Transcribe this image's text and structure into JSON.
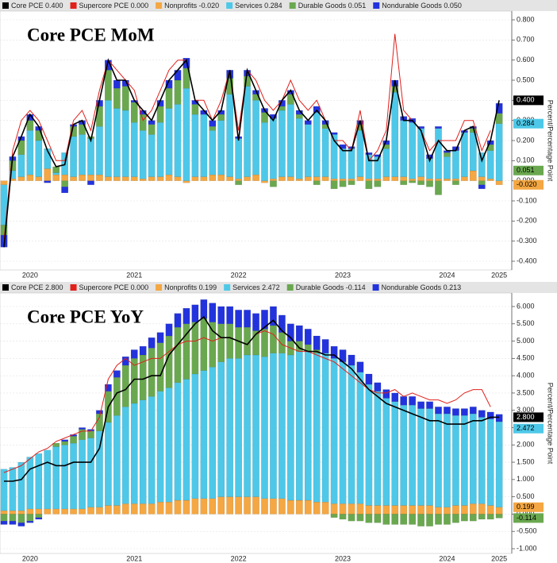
{
  "chart_data": [
    {
      "type": "bar",
      "title": "Core PCE MoM",
      "y_label": "Percent/Percentage Point",
      "legend_labels": [
        "Core PCE 0.400",
        "Supercore PCE 0.000",
        "Nonprofits -0.020",
        "Services 0.284",
        "Durable Goods 0.051",
        "Nondurable Goods 0.050"
      ],
      "categories": [
        null,
        null,
        null,
        "2020",
        null,
        null,
        null,
        null,
        null,
        null,
        null,
        null,
        null,
        null,
        null,
        "2021",
        null,
        null,
        null,
        null,
        null,
        null,
        null,
        null,
        null,
        null,
        null,
        "2022",
        null,
        null,
        null,
        null,
        null,
        null,
        null,
        null,
        null,
        null,
        null,
        "2023",
        null,
        null,
        null,
        null,
        null,
        null,
        null,
        null,
        null,
        null,
        null,
        "2024",
        null,
        null,
        null,
        null,
        null,
        "2025"
      ],
      "ylim": [
        -0.4,
        0.8
      ],
      "yticks": [
        {
          "value": -0.4,
          "label": "-0.400"
        },
        {
          "value": -0.3,
          "label": "-0.300"
        },
        {
          "value": -0.2,
          "label": "-0.200"
        },
        {
          "value": -0.1,
          "label": "-0.100"
        },
        {
          "value": 0,
          "label": "0.000"
        },
        {
          "value": 0.1,
          "label": "0.100"
        },
        {
          "value": 0.2,
          "label": "0.200"
        },
        {
          "value": 0.3,
          "label": "0.300"
        },
        {
          "value": 0.4,
          "label": "0.400"
        },
        {
          "value": 0.5,
          "label": "0.500"
        },
        {
          "value": 0.6,
          "label": "0.600"
        },
        {
          "value": 0.7,
          "label": "0.700"
        },
        {
          "value": 0.8,
          "label": "0.800"
        }
      ],
      "grid": true,
      "end_labels": [
        {
          "value": 0.4,
          "label": "0.400",
          "color": "#000000"
        },
        {
          "value": 0.284,
          "label": "0.284",
          "color": "#4ec8e8"
        },
        {
          "value": 0.051,
          "label": "0.051",
          "color": "#6aa84f"
        },
        {
          "value": -0.02,
          "label": "-0.020",
          "color": "#f4a742"
        }
      ],
      "series": [
        {
          "name": "Core PCE",
          "mark": "line",
          "color": "#000000",
          "values": [
            -0.33,
            0.12,
            0.22,
            0.33,
            0.27,
            0.15,
            0.07,
            0.08,
            0.28,
            0.3,
            0.2,
            0.4,
            0.6,
            0.5,
            0.5,
            0.4,
            0.35,
            0.3,
            0.4,
            0.5,
            0.55,
            0.6,
            0.4,
            0.35,
            0.3,
            0.35,
            0.55,
            0.2,
            0.55,
            0.45,
            0.35,
            0.3,
            0.4,
            0.45,
            0.35,
            0.3,
            0.35,
            0.3,
            0.2,
            0.15,
            0.15,
            0.3,
            0.1,
            0.1,
            0.2,
            0.5,
            0.3,
            0.3,
            0.25,
            0.1,
            0.2,
            0.15,
            0.15,
            0.25,
            0.27,
            0.1,
            0.2,
            0.4
          ]
        },
        {
          "name": "Supercore PCE",
          "mark": "line",
          "color": "#e0201b",
          "values": [
            -0.3,
            0.15,
            0.3,
            0.35,
            0.3,
            0.2,
            0.1,
            0.1,
            0.3,
            0.35,
            0.25,
            0.45,
            0.6,
            0.55,
            0.5,
            0.45,
            0.3,
            0.35,
            0.45,
            0.55,
            0.6,
            0.6,
            0.4,
            0.4,
            0.3,
            0.4,
            0.55,
            0.25,
            0.55,
            0.5,
            0.4,
            0.35,
            0.4,
            0.5,
            0.4,
            0.35,
            0.4,
            0.3,
            0.2,
            0.2,
            0.15,
            0.35,
            0.1,
            0.15,
            0.25,
            0.73,
            0.35,
            0.3,
            0.25,
            0.15,
            0.2,
            0.2,
            0.2,
            0.3,
            0.3,
            0.15,
            0.25,
            null
          ]
        },
        {
          "name": "Nonprofits",
          "mark": "bar",
          "color": "#f4a742",
          "values": [
            -0.02,
            0.01,
            0.02,
            0.03,
            0.02,
            0.06,
            0.03,
            0.03,
            0.02,
            0.03,
            0.03,
            0.03,
            0.02,
            0.02,
            0.02,
            0.02,
            0.01,
            0.02,
            0.02,
            0.03,
            0.02,
            -0.01,
            0.02,
            0.02,
            0.03,
            0.03,
            0.02,
            0.01,
            0.02,
            0.03,
            -0.01,
            0.01,
            0.02,
            0.02,
            0.01,
            0.02,
            0.02,
            0.02,
            0.01,
            0.01,
            0.01,
            0.02,
            0.01,
            0.01,
            0.02,
            0.02,
            0.02,
            0.01,
            0.02,
            0.01,
            0.01,
            0.01,
            0.01,
            0.02,
            0.05,
            0.02,
            0.01,
            -0.02
          ]
        },
        {
          "name": "Services",
          "mark": "bar",
          "color": "#4ec8e8",
          "values": [
            -0.2,
            0.04,
            0.11,
            0.22,
            0.18,
            0.1,
            0.01,
            0.11,
            0.2,
            0.2,
            0.18,
            0.24,
            0.38,
            0.34,
            0.33,
            0.27,
            0.24,
            0.21,
            0.27,
            0.33,
            0.36,
            0.46,
            0.31,
            0.31,
            0.22,
            0.27,
            0.41,
            0.2,
            0.45,
            0.37,
            0.29,
            0.3,
            0.33,
            0.36,
            0.3,
            0.26,
            0.32,
            0.24,
            0.22,
            0.15,
            0.15,
            0.23,
            0.12,
            0.11,
            0.14,
            0.42,
            0.28,
            0.28,
            0.24,
            0.1,
            0.25,
            0.11,
            0.14,
            0.22,
            0.19,
            0.12,
            0.14,
            0.284
          ]
        },
        {
          "name": "Durable Goods",
          "mark": "bar",
          "color": "#6aa84f",
          "values": [
            -0.05,
            0.05,
            0.07,
            0.05,
            0.05,
            0.0,
            0.03,
            -0.03,
            0.05,
            0.05,
            0.01,
            0.1,
            0.15,
            0.1,
            0.12,
            0.1,
            0.08,
            0.05,
            0.08,
            0.1,
            0.12,
            0.1,
            0.05,
            0.0,
            0.02,
            0.03,
            0.08,
            -0.02,
            0.05,
            0.03,
            0.05,
            -0.03,
            0.02,
            0.05,
            0.02,
            0.0,
            -0.02,
            0.02,
            -0.04,
            -0.03,
            -0.02,
            0.03,
            -0.04,
            -0.03,
            0.02,
            0.03,
            -0.02,
            -0.01,
            -0.02,
            -0.03,
            -0.07,
            0.02,
            -0.02,
            0.0,
            0.02,
            -0.02,
            0.03,
            0.051
          ]
        },
        {
          "name": "Nondurable Goods",
          "mark": "bar",
          "color": "#2233dd",
          "values": [
            -0.06,
            0.02,
            0.02,
            0.03,
            0.02,
            -0.01,
            0.0,
            -0.03,
            0.01,
            0.02,
            -0.02,
            0.03,
            0.05,
            0.04,
            0.03,
            0.01,
            0.02,
            0.02,
            0.03,
            0.04,
            0.05,
            0.05,
            0.02,
            0.02,
            0.03,
            0.02,
            0.04,
            0.01,
            0.03,
            0.02,
            0.02,
            0.02,
            0.03,
            0.02,
            0.02,
            0.02,
            0.03,
            0.02,
            0.01,
            0.02,
            0.01,
            0.02,
            0.01,
            0.01,
            0.02,
            0.03,
            0.02,
            0.02,
            0.01,
            0.02,
            0.01,
            0.01,
            0.02,
            0.01,
            0.01,
            -0.02,
            0.02,
            0.05
          ]
        }
      ]
    },
    {
      "type": "bar",
      "title": "Core PCE YoY",
      "y_label": "Percent/Percentage Point",
      "legend_labels": [
        "Core PCE 2.800",
        "Supercore PCE 0.000",
        "Nonprofits 0.199",
        "Services 2.472",
        "Durable Goods -0.114",
        "Nondurable Goods 0.213"
      ],
      "categories": [
        null,
        null,
        null,
        "2020",
        null,
        null,
        null,
        null,
        null,
        null,
        null,
        null,
        null,
        null,
        null,
        "2021",
        null,
        null,
        null,
        null,
        null,
        null,
        null,
        null,
        null,
        null,
        null,
        "2022",
        null,
        null,
        null,
        null,
        null,
        null,
        null,
        null,
        null,
        null,
        null,
        "2023",
        null,
        null,
        null,
        null,
        null,
        null,
        null,
        null,
        null,
        null,
        null,
        "2024",
        null,
        null,
        null,
        null,
        null,
        "2025"
      ],
      "ylim": [
        -1.0,
        6.0
      ],
      "yticks": [
        {
          "value": -1.0,
          "label": "-1.000"
        },
        {
          "value": -0.5,
          "label": "-0.500"
        },
        {
          "value": 0,
          "label": "0.000"
        },
        {
          "value": 0.5,
          "label": "0.500"
        },
        {
          "value": 1.0,
          "label": "1.000"
        },
        {
          "value": 1.5,
          "label": "1.500"
        },
        {
          "value": 2.0,
          "label": "2.000"
        },
        {
          "value": 2.5,
          "label": "2.500"
        },
        {
          "value": 3.0,
          "label": "3.000"
        },
        {
          "value": 3.5,
          "label": "3.500"
        },
        {
          "value": 4.0,
          "label": "4.000"
        },
        {
          "value": 4.5,
          "label": "4.500"
        },
        {
          "value": 5.0,
          "label": "5.000"
        },
        {
          "value": 5.5,
          "label": "5.500"
        },
        {
          "value": 6.0,
          "label": "6.000"
        }
      ],
      "grid": true,
      "end_labels": [
        {
          "value": 2.8,
          "label": "2.800",
          "color": "#000000"
        },
        {
          "value": 2.472,
          "label": "2.472",
          "color": "#4ec8e8"
        },
        {
          "value": 0.199,
          "label": "0.199",
          "color": "#f4a742"
        },
        {
          "value": -0.114,
          "label": "-0.114",
          "color": "#6aa84f"
        }
      ],
      "series": [
        {
          "name": "Core PCE",
          "mark": "line",
          "color": "#000000",
          "values": [
            0.95,
            0.95,
            1.0,
            1.3,
            1.4,
            1.5,
            1.4,
            1.4,
            1.5,
            1.5,
            1.5,
            1.9,
            3.1,
            3.5,
            3.6,
            3.9,
            3.9,
            4.0,
            4.0,
            4.6,
            4.9,
            5.2,
            5.5,
            5.7,
            5.3,
            5.1,
            5.1,
            5.0,
            4.9,
            5.2,
            5.4,
            5.6,
            5.3,
            5.1,
            4.8,
            4.7,
            4.7,
            4.6,
            4.6,
            4.4,
            4.2,
            3.9,
            3.6,
            3.4,
            3.2,
            3.1,
            3.0,
            2.9,
            2.8,
            2.7,
            2.7,
            2.6,
            2.6,
            2.6,
            2.7,
            2.7,
            2.8,
            2.8
          ]
        },
        {
          "name": "Supercore PCE",
          "mark": "line",
          "color": "#e0201b",
          "values": [
            1.2,
            1.3,
            1.4,
            1.6,
            1.8,
            1.9,
            2.1,
            2.2,
            2.3,
            2.4,
            2.4,
            2.8,
            3.9,
            4.3,
            4.5,
            4.3,
            4.4,
            4.5,
            4.5,
            4.7,
            4.9,
            5.0,
            5.0,
            5.1,
            5.0,
            5.1,
            5.1,
            5.0,
            4.9,
            5.2,
            5.3,
            5.2,
            4.9,
            4.8,
            4.7,
            4.7,
            4.6,
            4.5,
            4.4,
            4.2,
            4.0,
            3.8,
            3.6,
            3.5,
            3.5,
            3.6,
            3.4,
            3.5,
            3.4,
            3.3,
            3.3,
            3.2,
            3.3,
            3.5,
            3.6,
            3.6,
            3.1,
            null
          ]
        },
        {
          "name": "Nonprofits",
          "mark": "bar",
          "color": "#f4a742",
          "values": [
            0.1,
            0.1,
            0.1,
            0.15,
            0.15,
            0.15,
            0.15,
            0.15,
            0.15,
            0.15,
            0.2,
            0.2,
            0.25,
            0.25,
            0.3,
            0.3,
            0.3,
            0.3,
            0.35,
            0.35,
            0.4,
            0.4,
            0.45,
            0.45,
            0.45,
            0.5,
            0.5,
            0.5,
            0.5,
            0.5,
            0.45,
            0.45,
            0.45,
            0.4,
            0.4,
            0.4,
            0.35,
            0.35,
            0.3,
            0.3,
            0.3,
            0.3,
            0.25,
            0.25,
            0.25,
            0.25,
            0.25,
            0.25,
            0.25,
            0.25,
            0.2,
            0.2,
            0.25,
            0.25,
            0.3,
            0.3,
            0.25,
            0.199
          ]
        },
        {
          "name": "Services",
          "mark": "bar",
          "color": "#4ec8e8",
          "values": [
            1.2,
            1.25,
            1.4,
            1.5,
            1.6,
            1.7,
            1.8,
            1.85,
            1.9,
            2.0,
            2.0,
            2.2,
            2.4,
            2.6,
            2.8,
            2.9,
            3.0,
            3.1,
            3.2,
            3.3,
            3.4,
            3.5,
            3.6,
            3.7,
            3.8,
            3.9,
            4.0,
            4.0,
            4.1,
            4.1,
            4.1,
            4.2,
            4.2,
            4.2,
            4.3,
            4.3,
            4.3,
            4.3,
            4.2,
            4.1,
            4.0,
            3.8,
            3.5,
            3.3,
            3.1,
            3.0,
            2.9,
            2.9,
            2.8,
            2.8,
            2.7,
            2.7,
            2.6,
            2.6,
            2.6,
            2.5,
            2.5,
            2.472
          ]
        },
        {
          "name": "Durable Goods",
          "mark": "bar",
          "color": "#6aa84f",
          "values": [
            -0.2,
            -0.2,
            -0.25,
            -0.2,
            -0.1,
            0.0,
            0.1,
            0.1,
            0.2,
            0.3,
            0.2,
            0.5,
            0.9,
            1.1,
            1.2,
            1.3,
            1.3,
            1.4,
            1.4,
            1.5,
            1.6,
            1.6,
            1.5,
            1.5,
            1.3,
            1.1,
            1.0,
            0.9,
            0.8,
            0.7,
            0.8,
            0.8,
            0.6,
            0.4,
            0.3,
            0.2,
            0.1,
            0.0,
            -0.1,
            -0.15,
            -0.2,
            -0.2,
            -0.25,
            -0.25,
            -0.3,
            -0.3,
            -0.3,
            -0.3,
            -0.35,
            -0.35,
            -0.3,
            -0.3,
            -0.25,
            -0.2,
            -0.2,
            -0.15,
            -0.15,
            -0.114
          ]
        },
        {
          "name": "Nondurable Goods",
          "mark": "bar",
          "color": "#2233dd",
          "values": [
            -0.1,
            -0.1,
            -0.1,
            -0.05,
            -0.05,
            0.0,
            0.0,
            0.05,
            0.05,
            0.05,
            0.05,
            0.1,
            0.2,
            0.2,
            0.25,
            0.25,
            0.25,
            0.3,
            0.3,
            0.35,
            0.4,
            0.45,
            0.5,
            0.55,
            0.55,
            0.5,
            0.5,
            0.5,
            0.5,
            0.5,
            0.55,
            0.55,
            0.5,
            0.5,
            0.45,
            0.45,
            0.4,
            0.4,
            0.35,
            0.35,
            0.3,
            0.3,
            0.3,
            0.25,
            0.25,
            0.25,
            0.25,
            0.25,
            0.2,
            0.2,
            0.2,
            0.2,
            0.2,
            0.2,
            0.2,
            0.2,
            0.2,
            0.213
          ]
        }
      ]
    }
  ]
}
